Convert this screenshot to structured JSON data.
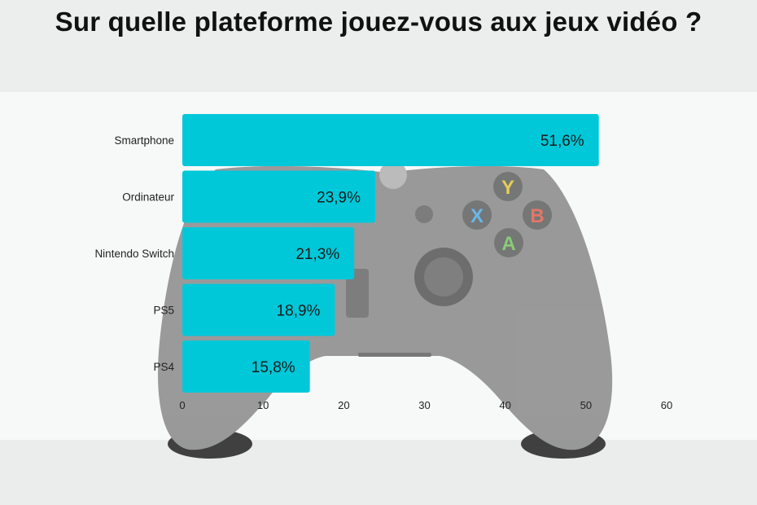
{
  "title": "Sur quelle plateforme jouez-vous aux jeux vidéo ?",
  "colors": {
    "bar": "#00c8d9",
    "controller": "#8e8e8e",
    "controller_dark": "#6c6c6c"
  },
  "chart_data": {
    "type": "bar",
    "orientation": "horizontal",
    "title": "Sur quelle plateforme jouez-vous aux jeux vidéo ?",
    "categories": [
      "Smartphone",
      "Ordinateur",
      "Nintendo Switch",
      "PS5",
      "PS4"
    ],
    "values": [
      51.6,
      23.9,
      21.3,
      18.9,
      15.8
    ],
    "value_labels": [
      "51,6%",
      "23,9%",
      "21,3%",
      "18,9%",
      "15,8%"
    ],
    "xlim": [
      0,
      60
    ],
    "xticks": [
      0,
      10,
      20,
      30,
      40,
      50,
      60
    ],
    "xlabel": "",
    "ylabel": "",
    "grid": false
  },
  "background_image": {
    "subject": "game-controller",
    "button_labels": [
      "Y",
      "X",
      "B",
      "A"
    ]
  }
}
